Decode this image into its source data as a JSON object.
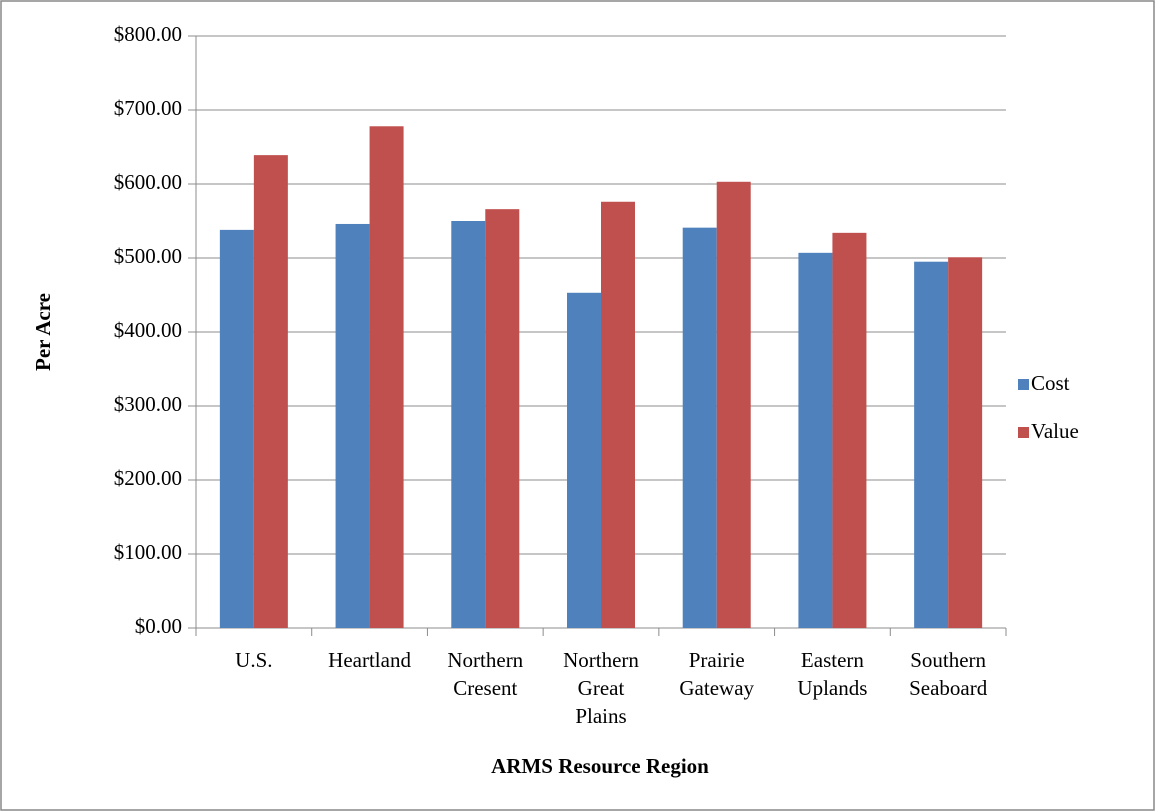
{
  "chart_data": {
    "type": "bar",
    "x_label": "ARMS Resource Region",
    "y_label": "Per Acre",
    "categories": [
      "U.S.",
      "Heartland",
      "Northern Cresent",
      "Northern Great Plains",
      "Prairie Gateway",
      "Eastern Uplands",
      "Southern Seaboard"
    ],
    "series": [
      {
        "name": "Cost",
        "color": "#4f81bd",
        "values": [
          538,
          546,
          550,
          453,
          541,
          507,
          495
        ]
      },
      {
        "name": "Value",
        "color": "#c0504d",
        "values": [
          639,
          678,
          566,
          576,
          603,
          534,
          501
        ]
      }
    ],
    "ylim": [
      0,
      800
    ],
    "yticks": [
      {
        "value": 0,
        "label": "$0.00"
      },
      {
        "value": 100,
        "label": "$100.00"
      },
      {
        "value": 200,
        "label": "$200.00"
      },
      {
        "value": 300,
        "label": "$300.00"
      },
      {
        "value": 400,
        "label": "$400.00"
      },
      {
        "value": 500,
        "label": "$500.00"
      },
      {
        "value": 600,
        "label": "$600.00"
      },
      {
        "value": 700,
        "label": "$700.00"
      },
      {
        "value": 800,
        "label": "$800.00"
      }
    ],
    "grid": true,
    "legend": "right"
  }
}
